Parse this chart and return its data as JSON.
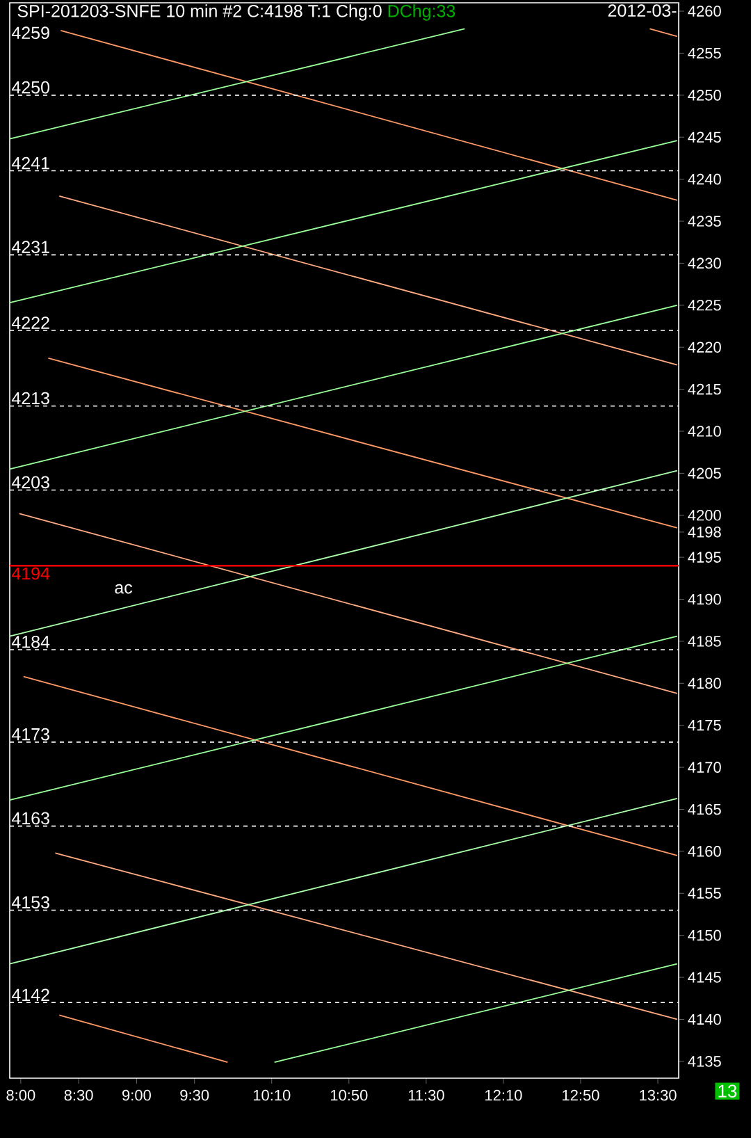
{
  "chart_data": {
    "type": "line",
    "title": "SPI-201203-SNFE  10 min  #2 C:4198 T:1 Chg:0",
    "subtitle": "DChg:33",
    "xlim": [
      7.905,
      13.68
    ],
    "ylim": [
      4133,
      4261
    ],
    "xticks": [
      {
        "value": 8,
        "label": "8:00"
      },
      {
        "value": 8.5,
        "label": "8:30"
      },
      {
        "value": 9,
        "label": "9:00"
      },
      {
        "value": 9.5,
        "label": "9:30"
      },
      {
        "value": 10.1667,
        "label": "10:10"
      },
      {
        "value": 10.8333,
        "label": "10:50"
      },
      {
        "value": 11.5,
        "label": "11:30"
      },
      {
        "value": 12.1667,
        "label": "12:10"
      },
      {
        "value": 12.8333,
        "label": "12:50"
      },
      {
        "value": 13.5,
        "label": "13:30"
      }
    ],
    "yticks": [
      4135,
      4140,
      4145,
      4150,
      4155,
      4160,
      4165,
      4170,
      4175,
      4180,
      4185,
      4190,
      4195,
      4198,
      4200,
      4205,
      4210,
      4215,
      4220,
      4225,
      4230,
      4235,
      4240,
      4245,
      4250,
      4255,
      4260
    ],
    "grid": false,
    "marker": "none",
    "line_style": "solid",
    "series": [
      {
        "color": "#ff9966",
        "x": [
          13.43,
          13.667
        ],
        "values": [
          4257.9,
          4257.0
        ]
      },
      {
        "color": "#ff9966",
        "x": [
          8.345,
          13.667
        ],
        "values": [
          4257.7,
          4237.5
        ]
      },
      {
        "color": "#ffaa80",
        "x": [
          8.333,
          13.667
        ],
        "values": [
          4238.0,
          4217.9
        ]
      },
      {
        "color": "#ff9966",
        "x": [
          8.238,
          13.667
        ],
        "values": [
          4218.7,
          4198.5
        ]
      },
      {
        "color": "#ffaa80",
        "x": [
          7.988,
          13.667
        ],
        "values": [
          4200.2,
          4178.8
        ]
      },
      {
        "color": "#ff9966",
        "x": [
          8.024,
          13.667
        ],
        "values": [
          4180.8,
          4159.5
        ]
      },
      {
        "color": "#ffaa80",
        "x": [
          8.298,
          13.667
        ],
        "values": [
          4159.8,
          4140.0
        ]
      },
      {
        "color": "#ff9966",
        "x": [
          8.333,
          9.786
        ],
        "values": [
          4140.5,
          4134.9
        ]
      },
      {
        "color": "#99ff99",
        "x": [
          7.905,
          11.833
        ],
        "values": [
          4244.8,
          4257.9
        ]
      },
      {
        "color": "#99ff99",
        "x": [
          7.905,
          13.667
        ],
        "values": [
          4225.3,
          4244.6
        ]
      },
      {
        "color": "#99ff99",
        "x": [
          7.905,
          13.667
        ],
        "values": [
          4205.5,
          4225.0
        ]
      },
      {
        "color": "#aaffaa",
        "x": [
          7.905,
          13.667
        ],
        "values": [
          4185.6,
          4205.3
        ]
      },
      {
        "color": "#99ff99",
        "x": [
          7.905,
          13.667
        ],
        "values": [
          4166.1,
          4185.6
        ]
      },
      {
        "color": "#aaffaa",
        "x": [
          7.905,
          13.667
        ],
        "values": [
          4146.6,
          4166.3
        ]
      },
      {
        "color": "#99ff99",
        "x": [
          10.19,
          13.667
        ],
        "values": [
          4134.9,
          4146.6
        ]
      }
    ],
    "ref_lines": [
      {
        "axis": "y",
        "value": 4250,
        "label": "4250",
        "color": "#ffffff",
        "line_style": "dashed"
      },
      {
        "axis": "y",
        "value": 4241,
        "label": "4241",
        "color": "#ffffff",
        "line_style": "dashed"
      },
      {
        "axis": "y",
        "value": 4231,
        "label": "4231",
        "color": "#ffffff",
        "line_style": "dashed"
      },
      {
        "axis": "y",
        "value": 4222,
        "label": "4222",
        "color": "#ffffff",
        "line_style": "dashed"
      },
      {
        "axis": "y",
        "value": 4213,
        "label": "4213",
        "color": "#ffffff",
        "line_style": "dashed"
      },
      {
        "axis": "y",
        "value": 4203,
        "label": "4203",
        "color": "#ffffff",
        "line_style": "dashed"
      },
      {
        "axis": "y",
        "value": 4194,
        "label": "4194",
        "color": "#ff0000",
        "line_style": "solid"
      },
      {
        "axis": "y",
        "value": 4184,
        "label": "4184",
        "color": "#ffffff",
        "line_style": "dashed"
      },
      {
        "axis": "y",
        "value": 4173,
        "label": "4173",
        "color": "#ffffff",
        "line_style": "dashed"
      },
      {
        "axis": "y",
        "value": 4163,
        "label": "4163",
        "color": "#ffffff",
        "line_style": "dashed"
      },
      {
        "axis": "y",
        "value": 4153,
        "label": "4153",
        "color": "#ffffff",
        "line_style": "dashed"
      },
      {
        "axis": "y",
        "value": 4142,
        "label": "4142",
        "color": "#ffffff",
        "line_style": "dashed"
      }
    ],
    "annotations": [
      "2012-03-",
      "13",
      "4259",
      "ac"
    ]
  }
}
